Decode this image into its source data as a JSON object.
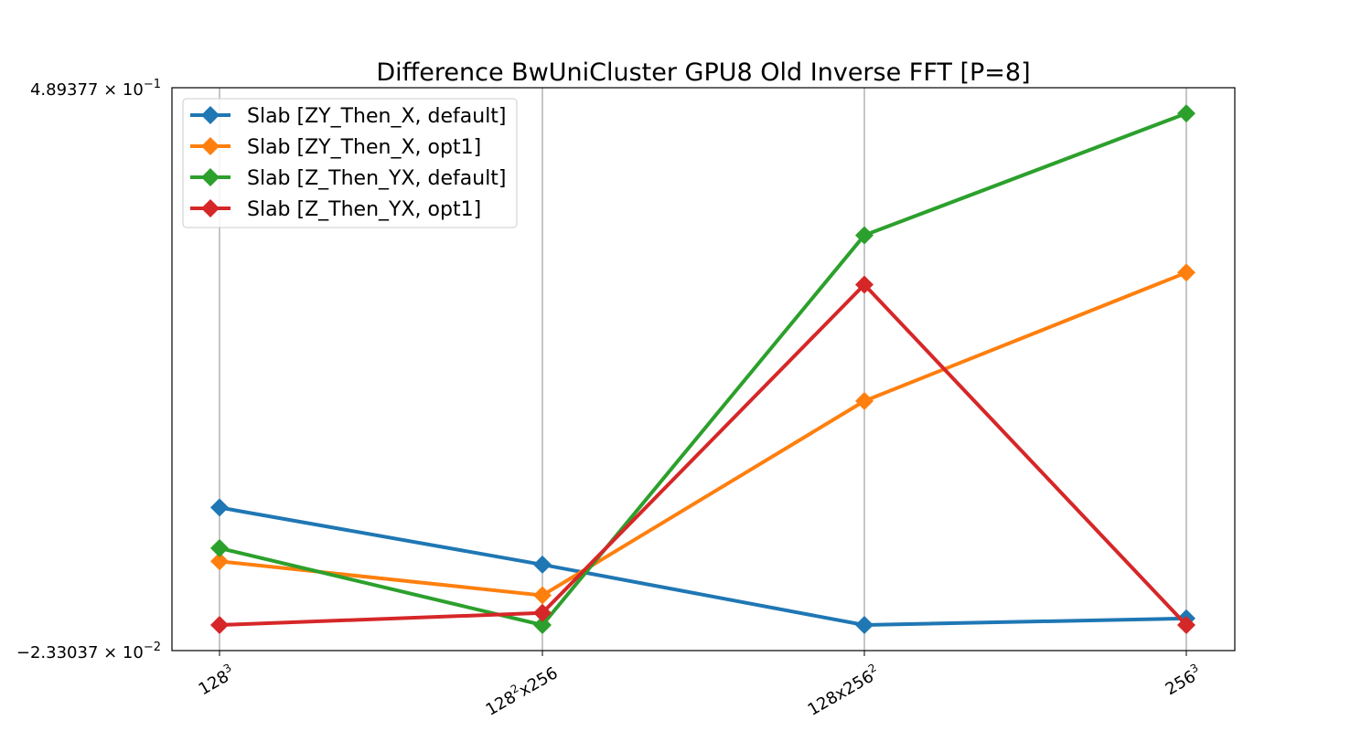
{
  "chart_data": {
    "type": "line",
    "title": "Difference BwUniCluster GPU8 Old Inverse FFT [P=8]",
    "xlabel": "",
    "ylabel": "",
    "yscale": "log",
    "ylim_labels": {
      "top": "4.89377 × 10",
      "top_exp": "−1",
      "bottom": "−2.33037 × 10",
      "bottom_exp": "−2"
    },
    "ylim": [
      -0.0233037,
      0.489377
    ],
    "categories": [
      {
        "base": "128",
        "sup": "3",
        "tail": "",
        "tail_sup": ""
      },
      {
        "base": "128",
        "sup": "2",
        "tail": "x256",
        "tail_sup": ""
      },
      {
        "base": "128x256",
        "sup": "2",
        "tail": "",
        "tail_sup": ""
      },
      {
        "base": "256",
        "sup": "3",
        "tail": "",
        "tail_sup": ""
      }
    ],
    "grid": "vertical",
    "legend_position": "upper-left",
    "series": [
      {
        "name": "Slab [ZY_Then_X, default]",
        "color": "#1f77b4",
        "values": [
          0.107,
          0.055,
          0.0,
          0.006
        ]
      },
      {
        "name": "Slab [ZY_Then_X, opt1]",
        "color": "#ff7f0e",
        "values": [
          0.058,
          0.027,
          0.204,
          0.321
        ]
      },
      {
        "name": "Slab [Z_Then_YX, default]",
        "color": "#2ca02c",
        "values": [
          0.07,
          0.0,
          0.355,
          0.466
        ]
      },
      {
        "name": "Slab [Z_Then_YX, opt1]",
        "color": "#d62728",
        "values": [
          0.0,
          0.011,
          0.31,
          0.0
        ]
      }
    ]
  }
}
